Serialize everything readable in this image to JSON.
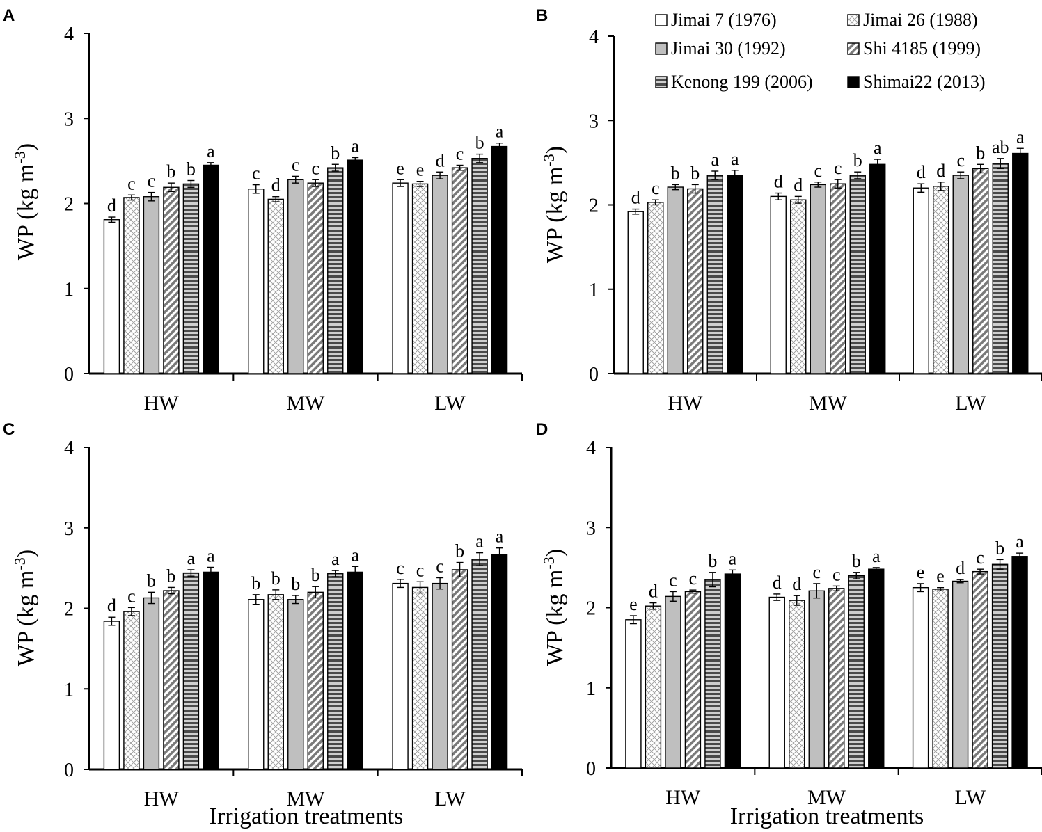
{
  "figure": {
    "y_axis_label": "WP (kg m",
    "y_axis_label_sup": "-3",
    "y_axis_label_close": ")",
    "x_axis_label": "Irrigation treatments"
  },
  "legend": [
    {
      "label": "Jimai 7 (1976)",
      "pattern": "white"
    },
    {
      "label": "Jimai 26 (1988)",
      "pattern": "crosshatch"
    },
    {
      "label": "Jimai 30 (1992)",
      "pattern": "gray"
    },
    {
      "label": "Shi 4185 (1999)",
      "pattern": "diagonal"
    },
    {
      "label": "Kenong 199 (2006)",
      "pattern": "horizontal"
    },
    {
      "label": "Shimai22 (2013)",
      "pattern": "black"
    }
  ],
  "colors": {
    "axis": "#000000",
    "gray_fill": "#bfbfbf",
    "dark_stripe": "#555555",
    "black_fill": "#000000"
  },
  "chart_data": [
    {
      "panel": "A",
      "type": "bar",
      "categories": [
        "HW",
        "MW",
        "LW"
      ],
      "ylim": [
        0,
        4
      ],
      "yticks": [
        0,
        1,
        2,
        3,
        4
      ],
      "series": [
        {
          "name": "Jimai 7 (1976)",
          "values": [
            1.81,
            2.17,
            2.24
          ],
          "errors": [
            0.03,
            0.05,
            0.04
          ],
          "letters": [
            "d",
            "c",
            "e"
          ]
        },
        {
          "name": "Jimai 26 (1988)",
          "values": [
            2.07,
            2.05,
            2.23
          ],
          "errors": [
            0.03,
            0.03,
            0.03
          ],
          "letters": [
            "c",
            "d",
            "e"
          ]
        },
        {
          "name": "Jimai 30 (1992)",
          "values": [
            2.08,
            2.28,
            2.33
          ],
          "errors": [
            0.05,
            0.04,
            0.04
          ],
          "letters": [
            "c",
            "c",
            "d"
          ]
        },
        {
          "name": "Shi 4185 (1999)",
          "values": [
            2.19,
            2.24,
            2.42
          ],
          "errors": [
            0.05,
            0.04,
            0.03
          ],
          "letters": [
            "b",
            "c",
            "c"
          ]
        },
        {
          "name": "Kenong 199 (2006)",
          "values": [
            2.23,
            2.42,
            2.53
          ],
          "errors": [
            0.04,
            0.04,
            0.05
          ],
          "letters": [
            "b",
            "b",
            "b"
          ]
        },
        {
          "name": "Shimai22 (2013)",
          "values": [
            2.45,
            2.51,
            2.67
          ],
          "errors": [
            0.03,
            0.03,
            0.04
          ],
          "letters": [
            "a",
            "a",
            "a"
          ]
        }
      ]
    },
    {
      "panel": "B",
      "type": "bar",
      "categories": [
        "HW",
        "MW",
        "LW"
      ],
      "ylim": [
        0,
        4
      ],
      "yticks": [
        0,
        1,
        2,
        3,
        4
      ],
      "series": [
        {
          "name": "Jimai 7 (1976)",
          "values": [
            1.92,
            2.1,
            2.2
          ],
          "errors": [
            0.03,
            0.04,
            0.05
          ],
          "letters": [
            "d",
            "d",
            "d"
          ]
        },
        {
          "name": "Jimai 26 (1988)",
          "values": [
            2.03,
            2.06,
            2.22
          ],
          "errors": [
            0.03,
            0.04,
            0.05
          ],
          "letters": [
            "c",
            "d",
            "d"
          ]
        },
        {
          "name": "Jimai 30 (1992)",
          "values": [
            2.21,
            2.24,
            2.35
          ],
          "errors": [
            0.03,
            0.03,
            0.04
          ],
          "letters": [
            "b",
            "c",
            "c"
          ]
        },
        {
          "name": "Shi 4185 (1999)",
          "values": [
            2.19,
            2.25,
            2.43
          ],
          "errors": [
            0.05,
            0.05,
            0.05
          ],
          "letters": [
            "b",
            "c",
            "b"
          ]
        },
        {
          "name": "Kenong 199 (2006)",
          "values": [
            2.35,
            2.35,
            2.49
          ],
          "errors": [
            0.05,
            0.04,
            0.06
          ],
          "letters": [
            "a",
            "b",
            "ab"
          ]
        },
        {
          "name": "Shimai22 (2013)",
          "values": [
            2.35,
            2.48,
            2.61
          ],
          "errors": [
            0.06,
            0.06,
            0.06
          ],
          "letters": [
            "a",
            "a",
            "a"
          ]
        }
      ]
    },
    {
      "panel": "C",
      "type": "bar",
      "categories": [
        "HW",
        "MW",
        "LW"
      ],
      "ylim": [
        0,
        4
      ],
      "yticks": [
        0,
        1,
        2,
        3,
        4
      ],
      "series": [
        {
          "name": "Jimai 7 (1976)",
          "values": [
            1.84,
            2.11,
            2.31
          ],
          "errors": [
            0.05,
            0.06,
            0.05
          ],
          "letters": [
            "d",
            "b",
            "c"
          ]
        },
        {
          "name": "Jimai 26 (1988)",
          "values": [
            1.96,
            2.17,
            2.26
          ],
          "errors": [
            0.05,
            0.06,
            0.07
          ],
          "letters": [
            "c",
            "b",
            "c"
          ]
        },
        {
          "name": "Jimai 30 (1992)",
          "values": [
            2.13,
            2.11,
            2.31
          ],
          "errors": [
            0.07,
            0.05,
            0.07
          ],
          "letters": [
            "b",
            "b",
            "c"
          ]
        },
        {
          "name": "Shi 4185 (1999)",
          "values": [
            2.22,
            2.2,
            2.48
          ],
          "errors": [
            0.04,
            0.07,
            0.09
          ],
          "letters": [
            "b",
            "b",
            "b"
          ]
        },
        {
          "name": "Kenong 199 (2006)",
          "values": [
            2.44,
            2.43,
            2.61
          ],
          "errors": [
            0.04,
            0.04,
            0.08
          ],
          "letters": [
            "a",
            "a",
            "a"
          ]
        },
        {
          "name": "Shimai22 (2013)",
          "values": [
            2.45,
            2.45,
            2.67
          ],
          "errors": [
            0.06,
            0.07,
            0.08
          ],
          "letters": [
            "a",
            "a",
            "a"
          ]
        }
      ]
    },
    {
      "panel": "D",
      "type": "bar",
      "categories": [
        "HW",
        "MW",
        "LW"
      ],
      "ylim": [
        0,
        4
      ],
      "yticks": [
        0,
        1,
        2,
        3,
        4
      ],
      "series": [
        {
          "name": "Jimai 7 (1976)",
          "values": [
            1.85,
            2.13,
            2.25
          ],
          "errors": [
            0.05,
            0.04,
            0.05
          ],
          "letters": [
            "e",
            "d",
            "e"
          ]
        },
        {
          "name": "Jimai 26 (1988)",
          "values": [
            2.02,
            2.09,
            2.23
          ],
          "errors": [
            0.04,
            0.06,
            0.02
          ],
          "letters": [
            "d",
            "d",
            "e"
          ]
        },
        {
          "name": "Jimai 30 (1992)",
          "values": [
            2.14,
            2.21,
            2.33
          ],
          "errors": [
            0.06,
            0.09,
            0.02
          ],
          "letters": [
            "c",
            "c",
            "d"
          ]
        },
        {
          "name": "Shi 4185 (1999)",
          "values": [
            2.2,
            2.24,
            2.45
          ],
          "errors": [
            0.02,
            0.03,
            0.03
          ],
          "letters": [
            "c",
            "c",
            "c"
          ]
        },
        {
          "name": "Kenong 199 (2006)",
          "values": [
            2.35,
            2.4,
            2.54
          ],
          "errors": [
            0.09,
            0.04,
            0.06
          ],
          "letters": [
            "b",
            "b",
            "b"
          ]
        },
        {
          "name": "Shimai22 (2013)",
          "values": [
            2.42,
            2.48,
            2.64
          ],
          "errors": [
            0.05,
            0.02,
            0.04
          ],
          "letters": [
            "a",
            "a",
            "a"
          ]
        }
      ]
    }
  ]
}
